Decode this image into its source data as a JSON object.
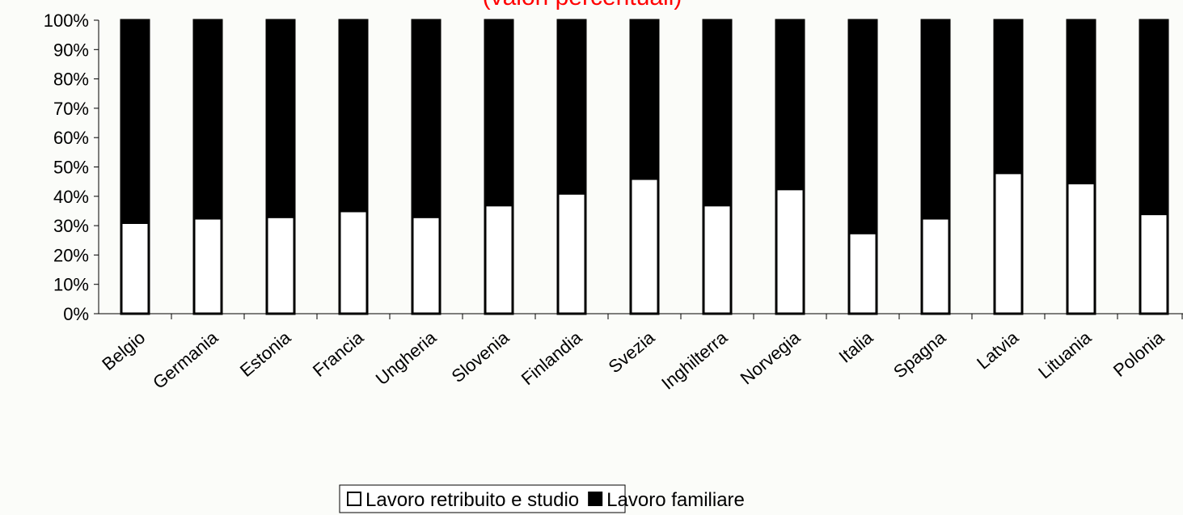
{
  "chart_data": {
    "type": "stacked_bar",
    "title": "(valori percentuali)",
    "categories": [
      "Belgio",
      "Germania",
      "Estonia",
      "Francia",
      "Ungheria",
      "Slovenia",
      "Finlandia",
      "Svezia",
      "Inghilterra",
      "Norvegia",
      "Italia",
      "Spagna",
      "Latvia",
      "Lituania",
      "Polonia"
    ],
    "series": [
      {
        "name": "Lavoro retribuito e studio",
        "color": "#ffffff",
        "values": [
          31,
          32.5,
          33,
          35,
          33,
          37,
          41,
          46,
          37,
          42.5,
          27.5,
          32.5,
          48,
          44.5,
          34
        ]
      },
      {
        "name": "Lavoro familiare",
        "color": "#000000",
        "values": [
          69,
          67.5,
          67,
          65,
          67,
          63,
          59,
          54,
          63,
          57.5,
          72.5,
          67.5,
          52,
          55.5,
          66
        ]
      }
    ],
    "ylim": [
      0,
      100
    ],
    "yticks": [
      {
        "value": 0,
        "label": "0%"
      },
      {
        "value": 10,
        "label": "10%"
      },
      {
        "value": 20,
        "label": "20%"
      },
      {
        "value": 30,
        "label": "30%"
      },
      {
        "value": 40,
        "label": "40%"
      },
      {
        "value": 50,
        "label": "50%"
      },
      {
        "value": 60,
        "label": "60%"
      },
      {
        "value": 70,
        "label": "70%"
      },
      {
        "value": 80,
        "label": "80%"
      },
      {
        "value": 90,
        "label": "90%"
      },
      {
        "value": 100,
        "label": "100%"
      }
    ],
    "legend": "bottom"
  }
}
